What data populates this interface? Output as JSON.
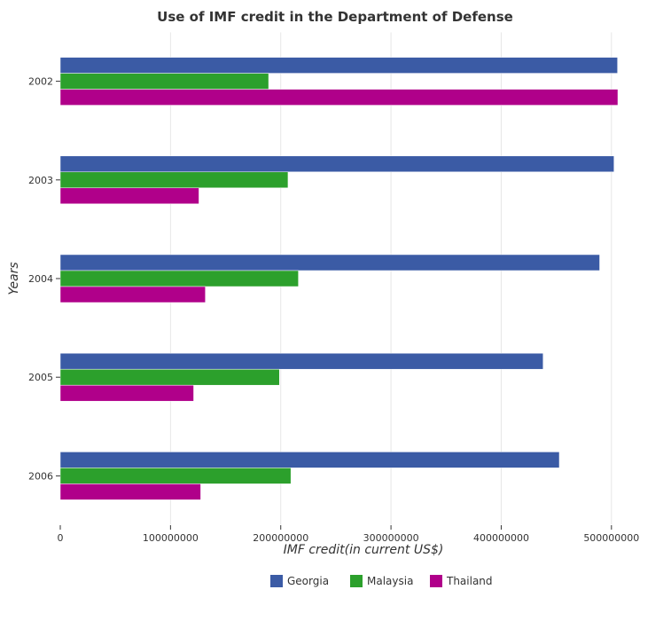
{
  "colors": {
    "Georgia": "#3b5ba5",
    "Malaysia": "#2ca02c",
    "Thailand": "#b0008a"
  },
  "chart_data": {
    "type": "bar",
    "orientation": "horizontal",
    "title": "Use of IMF credit in the Department of Defense",
    "xlabel": "IMF credit(in current US$)",
    "ylabel": "Years",
    "categories": [
      "2002",
      "2003",
      "2004",
      "2005",
      "2006"
    ],
    "xlim": [
      0,
      550000000
    ],
    "xticks": [
      0,
      100000000,
      200000000,
      300000000,
      400000000,
      500000000
    ],
    "xtick_labels": [
      "0",
      "100000000",
      "200000000",
      "300000000",
      "400000000",
      "500000000"
    ],
    "grid": true,
    "legend_position": "bottom",
    "series": [
      {
        "name": "Georgia",
        "values": [
          505500000,
          502300000,
          489300000,
          438000000,
          452700000
        ]
      },
      {
        "name": "Malaysia",
        "values": [
          189000000,
          206600000,
          216000000,
          198800000,
          209200000
        ]
      },
      {
        "name": "Thailand",
        "values": [
          505800000,
          125800000,
          131600000,
          121000000,
          127400000
        ]
      }
    ]
  }
}
